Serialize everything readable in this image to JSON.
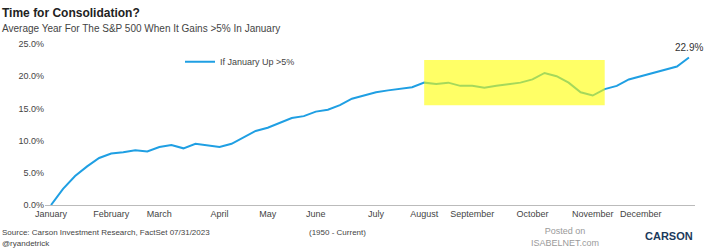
{
  "chart_data": {
    "type": "line",
    "title": "Time for Consolidation?",
    "subtitle": "Average Year For The S&P 500 When It Gains >5% In January",
    "categories": [
      "January",
      null,
      null,
      null,
      null,
      "February",
      null,
      null,
      null,
      "March",
      null,
      null,
      null,
      null,
      "April",
      null,
      null,
      null,
      "May",
      null,
      null,
      null,
      "June",
      null,
      null,
      null,
      null,
      "July",
      null,
      null,
      null,
      "August",
      null,
      null,
      null,
      "September",
      null,
      null,
      null,
      null,
      "October",
      null,
      null,
      null,
      null,
      "November",
      null,
      null,
      null,
      "December",
      null,
      null,
      null,
      null
    ],
    "series": [
      {
        "name": "If January Up >5%",
        "color": "#1f9fe3",
        "values": [
          0,
          2.5,
          4.5,
          6,
          7.3,
          8,
          8.2,
          8.5,
          8.3,
          9,
          9.3,
          8.8,
          9.5,
          9.2,
          9,
          9.5,
          10.5,
          11.5,
          12,
          12.8,
          13.5,
          13.8,
          14.5,
          14.8,
          15.5,
          16.5,
          17,
          17.5,
          17.8,
          18,
          18.3,
          19,
          18.8,
          19,
          18.5,
          18.5,
          18.2,
          18.5,
          18.8,
          19,
          19.5,
          20.5,
          20,
          19,
          17.5,
          17,
          18,
          18.5,
          19.5,
          20,
          20.5,
          21,
          21.5,
          22.9
        ]
      }
    ],
    "ylim": [
      0,
      25
    ],
    "yticks": [
      {
        "value": 0,
        "label": "0.0%"
      },
      {
        "value": 5,
        "label": "5.0%"
      },
      {
        "value": 10,
        "label": "10.0%"
      },
      {
        "value": 15,
        "label": "15.0%"
      },
      {
        "value": 20,
        "label": "20.0%"
      },
      {
        "value": 25,
        "label": "25.0%"
      }
    ],
    "grid": false,
    "legend": "top",
    "highlight": {
      "x0": 31,
      "x1": 46,
      "y0": 15.5,
      "y1": 22.5,
      "color": "#ffff00"
    },
    "annotations": [
      {
        "text": "22.9%",
        "x": 53,
        "y": 22.9
      }
    ],
    "source": "Source: Carson Investment Research, FactSet 07/31/2023",
    "credit": "@ryandetrick",
    "period": "(1950 - Current)",
    "watermark": [
      "Posted on",
      "ISABELNET.com"
    ],
    "logo": "CARSON"
  }
}
